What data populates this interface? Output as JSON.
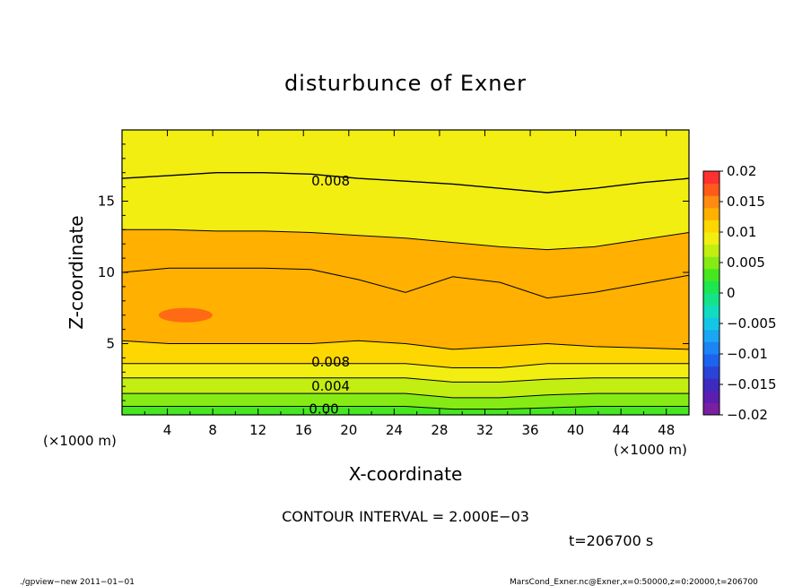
{
  "chart_data": {
    "type": "heatmap",
    "subtype": "filled-contour",
    "title": "disturbunce of Exner",
    "xlabel": "X-coordinate",
    "ylabel": "Z-coordinate",
    "x_unit_label": "(×1000 m)",
    "z_unit_label": "(×1000 m)",
    "xlim": [
      0,
      50
    ],
    "ylim": [
      0,
      20
    ],
    "x_ticks": [
      4,
      8,
      12,
      16,
      20,
      24,
      28,
      32,
      36,
      40,
      44,
      48
    ],
    "y_ticks": [
      5,
      10,
      15
    ],
    "colorbar": {
      "range": [
        -0.02,
        0.02
      ],
      "tick_labels": [
        "0.02",
        "0.015",
        "0.01",
        "0.005",
        "0",
        "−0.005",
        "−0.01",
        "−0.015",
        "−0.02"
      ],
      "levels": [
        -0.02,
        -0.018,
        -0.016,
        -0.014,
        -0.012,
        -0.01,
        -0.008,
        -0.006,
        -0.004,
        -0.002,
        0,
        0.002,
        0.004,
        0.006,
        0.008,
        0.01,
        0.012,
        0.014,
        0.016,
        0.018,
        0.02
      ],
      "colors": [
        "#7a1fa2",
        "#5b1fb0",
        "#3d2bc0",
        "#2a44d8",
        "#1e63ee",
        "#1c84f5",
        "#19a6f2",
        "#14c6e6",
        "#12dcc0",
        "#14e38a",
        "#1ee64e",
        "#45e81e",
        "#86eb14",
        "#c2ee12",
        "#f2ee12",
        "#ffd700",
        "#ffb000",
        "#ff8c10",
        "#ff5a1a",
        "#ff3030",
        "#ff8a8a"
      ]
    },
    "contour_interval": 0.002,
    "contour_labels": [
      "0.008",
      "0.008",
      "0.004",
      "0.00"
    ],
    "bands": [
      {
        "value": 0.002,
        "color": "#45e81e",
        "top": [
          0.6,
          0.6,
          0.6,
          0.6,
          0.6,
          0.6,
          0.6,
          0.4,
          0.4,
          0.5,
          0.6,
          0.6,
          0.6
        ]
      },
      {
        "value": 0.004,
        "color": "#86eb14",
        "top": [
          1.5,
          1.5,
          1.5,
          1.5,
          1.5,
          1.5,
          1.5,
          1.2,
          1.2,
          1.4,
          1.5,
          1.5,
          1.5
        ]
      },
      {
        "value": 0.006,
        "color": "#c2ee12",
        "top": [
          2.6,
          2.6,
          2.6,
          2.6,
          2.6,
          2.6,
          2.6,
          2.3,
          2.3,
          2.5,
          2.6,
          2.6,
          2.6
        ]
      },
      {
        "value": 0.008,
        "color": "#f2ee12",
        "top": [
          3.6,
          3.6,
          3.6,
          3.6,
          3.6,
          3.6,
          3.6,
          3.3,
          3.3,
          3.6,
          3.6,
          3.6,
          3.6
        ]
      },
      {
        "value": 0.01,
        "color": "#ffd700",
        "top": [
          5.2,
          5.0,
          5.0,
          5.0,
          5.0,
          5.2,
          5.0,
          4.6,
          4.8,
          5.0,
          4.8,
          4.7,
          4.6
        ]
      },
      {
        "value": 0.012,
        "color": "#ffb000",
        "top": [
          13.0,
          13.0,
          12.9,
          12.9,
          12.8,
          12.6,
          12.4,
          12.1,
          11.8,
          11.6,
          11.8,
          12.3,
          12.8
        ]
      },
      {
        "value": 0.014,
        "color": "#ff8c10",
        "top": [
          10.0,
          10.3,
          10.3,
          10.3,
          10.2,
          9.5,
          8.6,
          9.7,
          9.3,
          8.2,
          8.6,
          9.2,
          9.8
        ]
      }
    ],
    "bold_contour_values": [
      0.008,
      0.008,
      0.004,
      0.0
    ]
  },
  "annotations": {
    "contour_interval_text": "CONTOUR INTERVAL = 2.000E−03",
    "time_text": "t=206700 s",
    "footer_left": "./gpview−new   2011−01−01",
    "footer_right": "MarsCond_Exner.nc@Exner,x=0:50000,z=0:20000,t=206700"
  }
}
